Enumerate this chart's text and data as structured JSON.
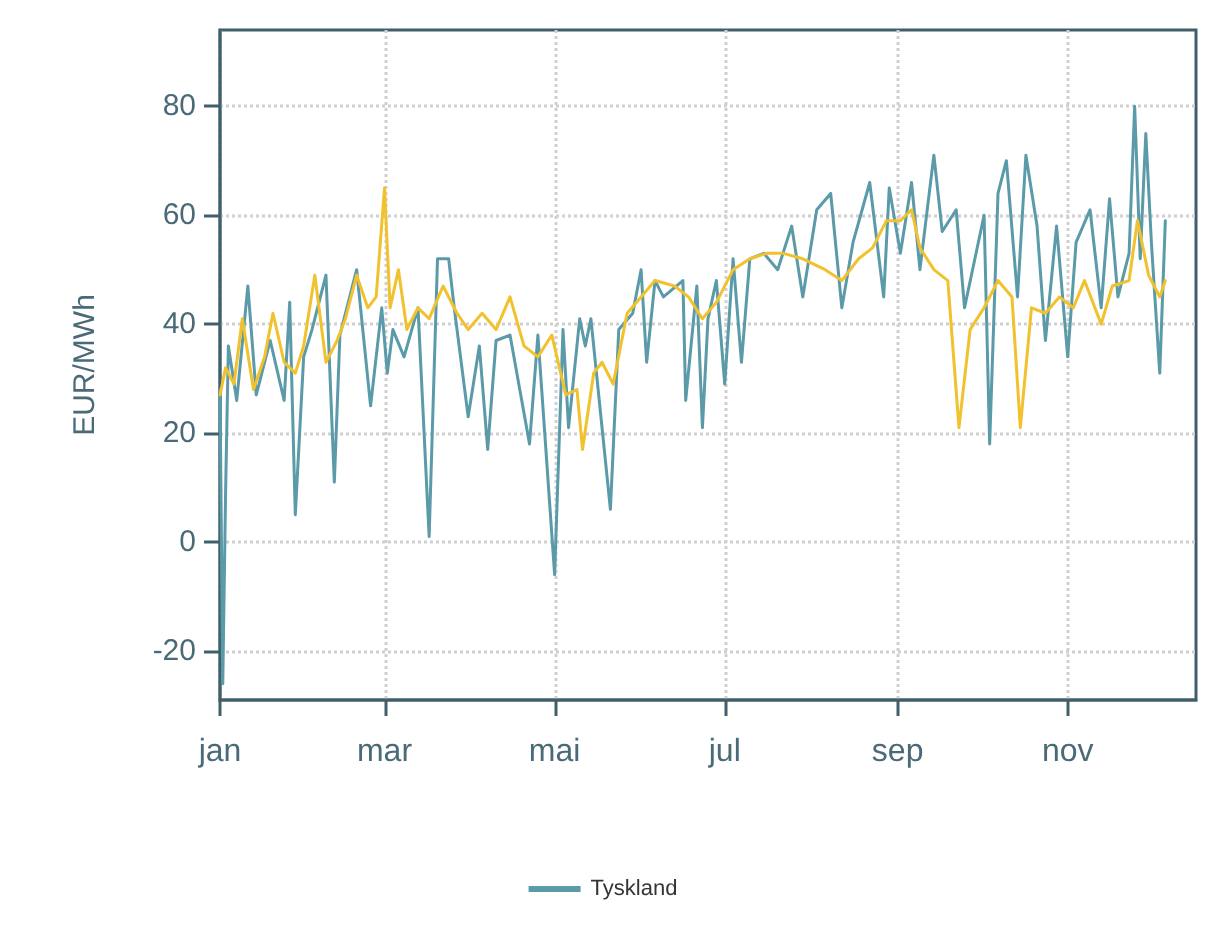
{
  "chart_data": {
    "type": "line",
    "ylabel": "EUR/MWh",
    "xlim": [
      "--01-01",
      "--12-17"
    ],
    "ylim": [
      -29,
      94
    ],
    "xticks": [
      {
        "value": "--01-01",
        "label": "jan"
      },
      {
        "value": "--03-01",
        "label": "mar"
      },
      {
        "value": "--05-01",
        "label": "mai"
      },
      {
        "value": "--07-01",
        "label": "jul"
      },
      {
        "value": "--09-01",
        "label": "sep"
      },
      {
        "value": "--11-01",
        "label": "nov"
      }
    ],
    "yticks": [
      -20,
      0,
      20,
      40,
      60,
      80
    ],
    "grid": true,
    "legend": "bottom",
    "line_style": "solid",
    "series": [
      {
        "name": "Tyskland",
        "color": "#5b9aa9",
        "x": [
          "--01-01",
          "--01-02",
          "--01-03",
          "--01-04",
          "--01-07",
          "--01-11",
          "--01-14",
          "--01-19",
          "--01-24",
          "--01-26",
          "--01-28",
          "--01-31",
          "--02-03",
          "--02-08",
          "--02-11",
          "--02-13",
          "--02-19",
          "--02-24",
          "--02-28",
          "--03-02",
          "--03-04",
          "--03-08",
          "--03-13",
          "--03-17",
          "--03-20",
          "--03-24",
          "--03-26",
          "--03-31",
          "--04-04",
          "--04-07",
          "--04-10",
          "--04-15",
          "--04-22",
          "--04-25",
          "--05-01",
          "--05-04",
          "--05-06",
          "--05-10",
          "--05-12",
          "--05-14",
          "--05-21",
          "--05-24",
          "--05-29",
          "--06-01",
          "--06-03",
          "--06-06",
          "--06-09",
          "--06-16",
          "--06-17",
          "--06-21",
          "--06-23",
          "--06-25",
          "--06-28",
          "--07-01",
          "--07-04",
          "--07-07",
          "--07-10",
          "--07-15",
          "--07-20",
          "--07-25",
          "--07-29",
          "--08-03",
          "--08-08",
          "--08-12",
          "--08-16",
          "--08-22",
          "--08-27",
          "--08-29",
          "--09-02",
          "--09-06",
          "--09-09",
          "--09-14",
          "--09-17",
          "--09-22",
          "--09-25",
          "--10-02",
          "--10-04",
          "--10-07",
          "--10-10",
          "--10-14",
          "--10-17",
          "--10-21",
          "--10-24",
          "--10-28",
          "--11-01",
          "--11-04",
          "--11-09",
          "--11-13",
          "--11-16",
          "--11-19",
          "--11-23",
          "--11-25",
          "--11-27",
          "--11-29",
          "--12-01",
          "--12-04",
          "--12-06"
        ],
        "values": [
          28,
          -26,
          9,
          36,
          26,
          47,
          27,
          37,
          26,
          44,
          5,
          34,
          39,
          49,
          11,
          38,
          50,
          25,
          43,
          31,
          39,
          34,
          43,
          1,
          52,
          52,
          43,
          23,
          36,
          17,
          37,
          38,
          18,
          38,
          -6,
          39,
          21,
          41,
          36,
          41,
          6,
          39,
          42,
          50,
          33,
          48,
          45,
          48,
          26,
          47,
          21,
          41,
          48,
          29,
          52,
          33,
          52,
          53,
          50,
          58,
          45,
          61,
          64,
          43,
          55,
          66,
          45,
          65,
          53,
          66,
          50,
          71,
          57,
          61,
          43,
          60,
          18,
          64,
          70,
          45,
          71,
          58,
          37,
          58,
          34,
          55,
          61,
          43,
          63,
          45,
          53,
          80,
          52,
          75,
          55,
          31,
          59
        ]
      },
      {
        "color": "#f2c12e",
        "x": [
          "--01-01",
          "--01-03",
          "--01-06",
          "--01-09",
          "--01-13",
          "--01-17",
          "--01-20",
          "--01-24",
          "--01-28",
          "--01-31",
          "--02-04",
          "--02-08",
          "--02-12",
          "--02-15",
          "--02-19",
          "--02-23",
          "--02-26",
          "--03-01",
          "--03-03",
          "--03-06",
          "--03-09",
          "--03-13",
          "--03-17",
          "--03-22",
          "--03-27",
          "--03-31",
          "--04-05",
          "--04-10",
          "--04-15",
          "--04-20",
          "--04-25",
          "--04-30",
          "--05-05",
          "--05-09",
          "--05-11",
          "--05-15",
          "--05-18",
          "--05-22",
          "--05-27",
          "--06-01",
          "--06-06",
          "--06-13",
          "--06-18",
          "--06-23",
          "--06-28",
          "--07-04",
          "--07-10",
          "--07-16",
          "--07-22",
          "--07-29",
          "--08-06",
          "--08-12",
          "--08-18",
          "--08-23",
          "--08-28",
          "--09-02",
          "--09-06",
          "--09-09",
          "--09-14",
          "--09-19",
          "--09-23",
          "--09-27",
          "--10-02",
          "--10-07",
          "--10-12",
          "--10-15",
          "--10-19",
          "--10-24",
          "--10-29",
          "--11-03",
          "--11-07",
          "--11-13",
          "--11-17",
          "--11-23",
          "--11-26",
          "--11-30",
          "--12-04",
          "--12-06"
        ],
        "values": [
          27,
          32,
          29,
          41,
          28,
          34,
          42,
          33,
          31,
          36,
          49,
          33,
          37,
          41,
          49,
          43,
          45,
          65,
          43,
          50,
          39,
          43,
          41,
          47,
          42,
          39,
          42,
          39,
          45,
          36,
          34,
          38,
          27,
          28,
          17,
          31,
          33,
          29,
          42,
          45,
          48,
          47,
          45,
          41,
          44,
          50,
          52,
          53,
          53,
          52,
          50,
          48,
          52,
          54,
          59,
          59,
          61,
          54,
          50,
          48,
          21,
          39,
          43,
          48,
          45,
          21,
          43,
          42,
          45,
          43,
          48,
          40,
          47,
          48,
          59,
          49,
          45,
          48
        ]
      }
    ]
  }
}
